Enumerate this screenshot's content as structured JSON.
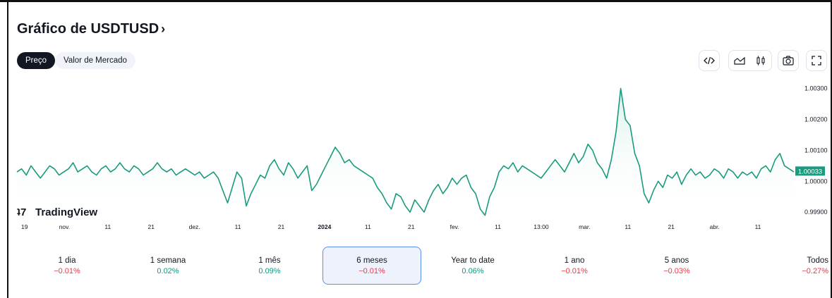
{
  "header": {
    "title": "Gráfico de USDTUSD",
    "title_arrow": "›"
  },
  "tabs": [
    {
      "label": "Preço",
      "active": true
    },
    {
      "label": "Valor de Mercado",
      "active": false
    }
  ],
  "toolbar": {
    "embed_icon": "code-icon",
    "line_icon": "area-chart-icon",
    "candle_icon": "candlestick-icon",
    "screenshot_icon": "camera-icon",
    "fullscreen_icon": "fullscreen-icon"
  },
  "watermark": "TradingView",
  "colors": {
    "line": "#1a9a7e",
    "fill_top": "#d6f0e8",
    "price_label_bg": "#1a9a7e",
    "negative": "#f23645",
    "positive": "#089981",
    "selected_border": "#5b8def"
  },
  "chart_data": {
    "type": "area",
    "symbol": "USDTUSD",
    "x_tick_labels": [
      "19",
      "nov.",
      "11",
      "21",
      "dez.",
      "11",
      "21",
      "2024",
      "11",
      "21",
      "fev.",
      "11",
      "13:00",
      "mar.",
      "11",
      "21",
      "abr.",
      "11"
    ],
    "y_tick_labels": [
      "1.00300",
      "1.00200",
      "1.00100",
      "1.00000",
      "0.99900"
    ],
    "ylim": [
      0.9988,
      1.0034
    ],
    "last_price_label": "1.00033",
    "series": [
      {
        "values": [
          1.0003,
          1.0004,
          1.0002,
          1.0005,
          1.0003,
          1.0001,
          1.0003,
          1.0005,
          1.0004,
          1.0002,
          1.0003,
          1.0004,
          1.0006,
          1.0003,
          1.0004,
          1.0005,
          1.0003,
          1.0002,
          1.0004,
          1.0005,
          1.0003,
          1.0004,
          1.0006,
          1.0004,
          1.0003,
          1.0005,
          1.0004,
          1.0002,
          1.0003,
          1.0004,
          1.0006,
          1.0004,
          1.0003,
          1.0004,
          1.0002,
          1.0003,
          1.0004,
          1.0003,
          1.0002,
          1.0003,
          1.0001,
          1.0002,
          1.0003,
          1.0001,
          0.9997,
          0.9993,
          0.9998,
          1.0003,
          1.0001,
          0.9992,
          0.9996,
          0.9999,
          1.0002,
          1.0001,
          1.0005,
          1.0007,
          1.0004,
          1.0002,
          1.0006,
          1.0004,
          1.0001,
          1.0003,
          1.0005,
          0.9997,
          0.9999,
          1.0002,
          1.0005,
          1.0008,
          1.0011,
          1.0009,
          1.0006,
          1.0007,
          1.0005,
          1.0004,
          1.0003,
          1.0002,
          1.0001,
          0.9998,
          0.9996,
          0.9993,
          0.9991,
          0.9996,
          0.9995,
          0.9992,
          0.999,
          0.9994,
          0.9992,
          0.999,
          0.9994,
          0.9997,
          0.9999,
          0.9996,
          0.9998,
          1.0001,
          0.9999,
          1.0001,
          1.0002,
          0.9998,
          0.9996,
          0.9991,
          0.9989,
          0.9995,
          0.9998,
          1.0003,
          1.0005,
          1.0004,
          1.0006,
          1.0003,
          1.0005,
          1.0004,
          1.0003,
          1.0002,
          1.0001,
          1.0003,
          1.0005,
          1.0007,
          1.0005,
          1.0003,
          1.0006,
          1.0009,
          1.0006,
          1.0008,
          1.0012,
          1.001,
          1.0006,
          1.0004,
          1.0001,
          1.0007,
          1.0016,
          1.003,
          1.002,
          1.0018,
          1.0009,
          1.0005,
          0.9996,
          0.9993,
          0.9997,
          1.0,
          0.9998,
          1.0002,
          1.0001,
          1.0003,
          0.9999,
          1.0002,
          1.0004,
          1.0002,
          1.0003,
          1.0001,
          1.0002,
          1.0004,
          1.0003,
          1.0001,
          1.0004,
          1.0003,
          1.0001,
          1.0003,
          1.0002,
          1.0003,
          1.0001,
          1.0004,
          1.0005,
          1.0003,
          1.0007,
          1.0009,
          1.0005,
          1.0004,
          1.0003
        ]
      }
    ]
  },
  "periods": [
    {
      "label": "1 dia",
      "change": "−0.01%",
      "sign": "neg"
    },
    {
      "label": "1 semana",
      "change": "0.02%",
      "sign": "pos"
    },
    {
      "label": "1 mês",
      "change": "0.09%",
      "sign": "pos"
    },
    {
      "label": "6 meses",
      "change": "−0.01%",
      "sign": "neg",
      "selected": true
    },
    {
      "label": "Year to date",
      "change": "0.06%",
      "sign": "pos"
    },
    {
      "label": "1 ano",
      "change": "−0.01%",
      "sign": "neg"
    },
    {
      "label": "5 anos",
      "change": "−0.03%",
      "sign": "neg"
    },
    {
      "label": "Todos",
      "change": "−0.27%",
      "sign": "neg"
    }
  ]
}
